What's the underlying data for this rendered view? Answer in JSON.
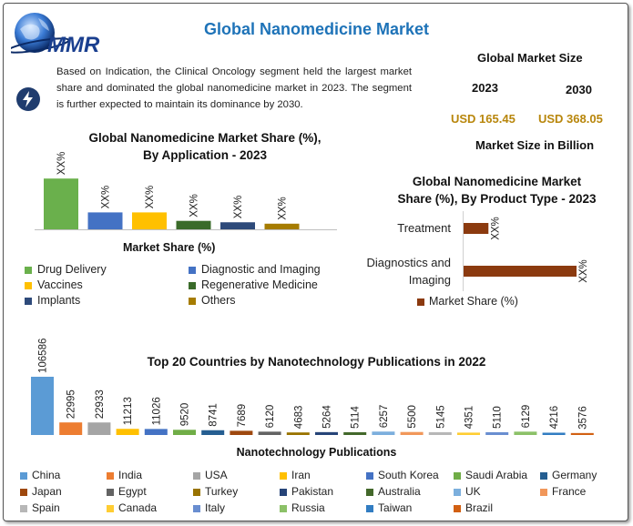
{
  "header": {
    "logo_text": "MMR",
    "title": "Global Nanomedicine Market",
    "description": "Based on Indication, the Clinical Oncology segment held the largest market share and dominated the global nanomedicine market in 2023. The segment is further expected to maintain its dominance by 2030."
  },
  "market_size": {
    "heading": "Global Market Size",
    "year_a": "2023",
    "year_b": "2030",
    "value_a": "USD 165.45",
    "value_b": "USD 368.05",
    "unit_note": "Market Size in Billion"
  },
  "colors": {
    "accent_blue": "#1e73b8",
    "gold": "#b8860b"
  },
  "chart_data": [
    {
      "type": "bar",
      "title_line1": "Global Nanomedicine Market Share (%),",
      "title_line2": "By Application - 2023",
      "xlabel": "Market Share (%)",
      "categories": [
        "Drug Delivery",
        "Diagnostic and Imaging",
        "Vaccines",
        "Regenerative Medicine",
        "Implants",
        "Others"
      ],
      "values": [
        36,
        12,
        12,
        6,
        5,
        4
      ],
      "data_labels": [
        "XX%",
        "XX%",
        "XX%",
        "XX%",
        "XX%",
        "XX%"
      ],
      "colors": [
        "#6ab04c",
        "#4472c4",
        "#ffc000",
        "#3a6b2a",
        "#2e4a7a",
        "#a67c00"
      ],
      "ylim": [
        0,
        40
      ]
    },
    {
      "type": "bar",
      "orientation": "horizontal",
      "title_line1": "Global Nanomedicine Market",
      "title_line2": "Share (%), By Product Type - 2023",
      "categories": [
        "Treatment",
        "Diagnostics and Imaging"
      ],
      "category_lines": [
        [
          "Treatment"
        ],
        [
          "Diagnostics and",
          "Imaging"
        ]
      ],
      "values": [
        22,
        100
      ],
      "data_labels": [
        "XX%",
        "XX%"
      ],
      "legend": "Market Share (%)",
      "color": "#8b3a0f",
      "xlim": [
        0,
        100
      ]
    },
    {
      "type": "bar",
      "title": "Top 20 Countries by Nanotechnology Publications in 2022",
      "xlabel": "Nanotechnology Publications",
      "categories": [
        "China",
        "India",
        "USA",
        "Iran",
        "South Korea",
        "Saudi Arabia",
        "Germany",
        "Japan",
        "Egypt",
        "Turkey",
        "Pakistan",
        "Australia",
        "UK",
        "France",
        "Spain",
        "Canada",
        "Italy",
        "Russia",
        "Taiwan",
        "Brazil"
      ],
      "values": [
        106586,
        22995,
        22933,
        11213,
        11026,
        9520,
        8741,
        7689,
        6120,
        4683,
        5264,
        5114,
        6257,
        5500,
        5145,
        4351,
        5110,
        6129,
        4216,
        3576
      ],
      "colors": [
        "#5b9bd5",
        "#ed7d31",
        "#a5a5a5",
        "#ffc000",
        "#4472c4",
        "#70ad47",
        "#255e91",
        "#9e480e",
        "#636363",
        "#997300",
        "#264478",
        "#43682b",
        "#7cafdd",
        "#f1975a",
        "#b7b7b7",
        "#ffcd33",
        "#698ed0",
        "#8cc168",
        "#327dc2",
        "#d26012"
      ],
      "ylim": [
        0,
        106586
      ]
    }
  ]
}
